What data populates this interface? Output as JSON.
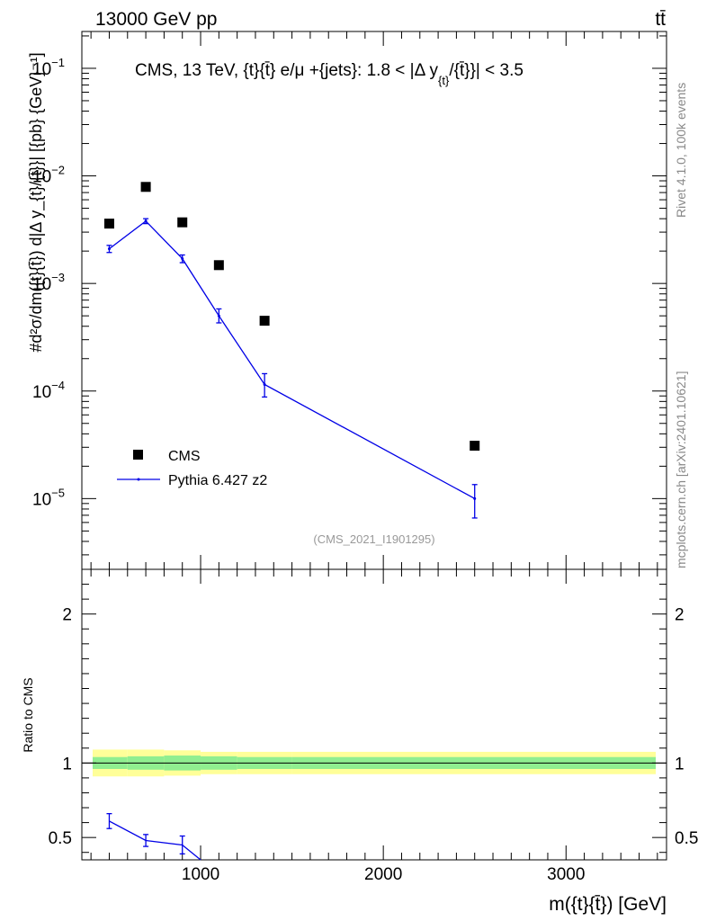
{
  "header": {
    "beam": "13000 GeV pp",
    "process": "tt̄"
  },
  "side_labels": {
    "rivet": "Rivet 4.1.0,  100k events",
    "mcplots": "mcplots.cern.ch [arXiv:2401.10621]"
  },
  "chart_data": [
    {
      "type": "scatter",
      "panel": "main",
      "title": "CMS, 13 TeV, {t}{t̄} e/μ +{jets}: 1.8 < |Δ y_{t}/{t̄}}| < 3.5",
      "title_main": "CMS, 13 TeV, {t}{t̄} e/μ +{jets}: 1.8 < |Δ y",
      "title_sub": "{t}",
      "title_tail": "/{t̄}}| < 3.5",
      "analysis_tag": "(CMS_2021_I1901295)",
      "ylabel": "#d²σ/dm({t}{t̄}) d|Δ y_{t}/{t̄}}| [{pb} {GeV}⁻¹]",
      "xlabel": "m({t}{t̄}) [GeV]",
      "yscale": "log",
      "ylim": [
        2.2e-06,
        0.22
      ],
      "xlim": [
        350,
        3550
      ],
      "yticks": [
        {
          "value": 1e-05,
          "mantissa": "10",
          "exp": "−5"
        },
        {
          "value": 0.0001,
          "mantissa": "10",
          "exp": "−4"
        },
        {
          "value": 0.001,
          "mantissa": "10",
          "exp": "−3"
        },
        {
          "value": 0.01,
          "mantissa": "10",
          "exp": "−2"
        },
        {
          "value": 0.1,
          "mantissa": "10",
          "exp": "−1"
        }
      ],
      "legend": {
        "location": "lower-left",
        "entries": [
          "CMS",
          "Pythia 6.427 z2"
        ]
      },
      "series": [
        {
          "name": "CMS",
          "style": "markers",
          "color": "#000000",
          "x": [
            500,
            700,
            900,
            1100,
            1350,
            2500
          ],
          "y": [
            0.0036,
            0.0079,
            0.0037,
            0.00148,
            0.00045,
            3.1e-05
          ]
        },
        {
          "name": "Pythia 6.427 z2",
          "style": "line-errorbars",
          "color": "#0000e6",
          "x": [
            500,
            700,
            900,
            1100,
            1350,
            2500
          ],
          "y": [
            0.0021,
            0.0038,
            0.0017,
            0.0005,
            0.000115,
            1e-05
          ],
          "ylow": [
            0.00194,
            0.0036,
            0.00156,
            0.00043,
            8.8e-05,
            6.6e-06
          ],
          "yhigh": [
            0.00226,
            0.004,
            0.00184,
            0.00058,
            0.000145,
            1.35e-05
          ]
        }
      ]
    },
    {
      "type": "line",
      "panel": "ratio",
      "ylabel": "Ratio to CMS",
      "ylim": [
        0.35,
        2.3
      ],
      "yticks": [
        0.5,
        1,
        2
      ],
      "ytick_labels": [
        "0.5",
        "1",
        "2"
      ],
      "xticks": [
        1000,
        2000,
        3000
      ],
      "xtick_labels": [
        "1000",
        "2000",
        "3000"
      ],
      "bin_edges": [
        400,
        600,
        800,
        1000,
        1200,
        1500,
        3500
      ],
      "band_stat": [
        0.04,
        0.045,
        0.05,
        0.045,
        0.04,
        0.04
      ],
      "band_total": [
        0.09,
        0.09,
        0.085,
        0.075,
        0.075,
        0.075
      ],
      "band_colors": {
        "stat": "#90ee90",
        "total": "#ffff99"
      },
      "series": [
        {
          "name": "Pythia 6.427 z2",
          "color": "#0000e6",
          "x": [
            500,
            700,
            900,
            1000
          ],
          "y": [
            0.61,
            0.48,
            0.45,
            0.35
          ],
          "ylow": [
            0.56,
            0.44,
            0.39,
            null
          ],
          "yhigh": [
            0.66,
            0.52,
            0.51,
            null
          ]
        }
      ]
    }
  ]
}
